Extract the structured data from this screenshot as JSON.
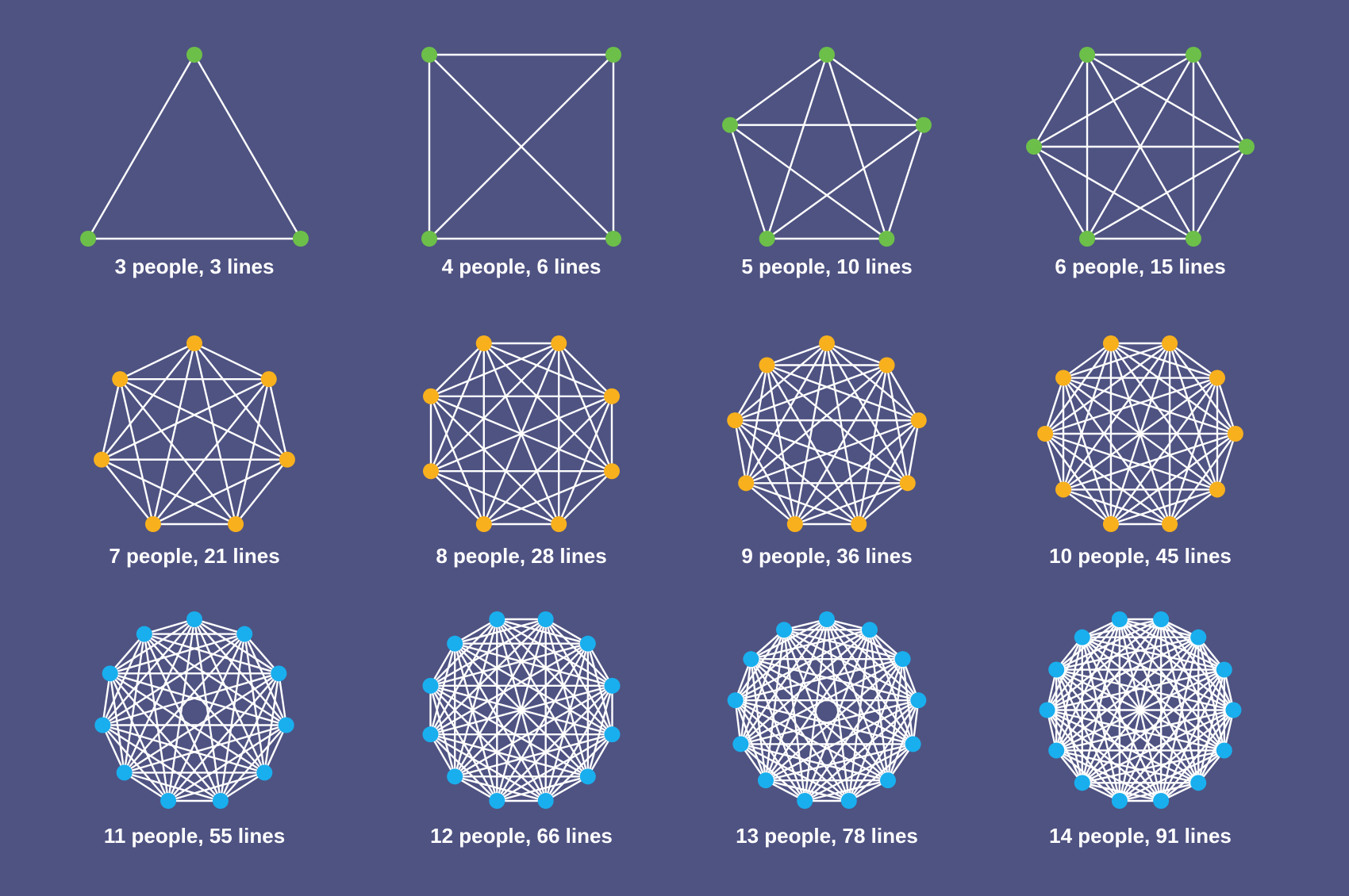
{
  "colors": {
    "background": "#4f5381",
    "line": "#ffffff",
    "green": "#6cc04a",
    "orange": "#f8b01d",
    "blue": "#19aeee"
  },
  "graphs": [
    {
      "people": 3,
      "lines": 3,
      "label": "3 people, 3 lines",
      "color": "green"
    },
    {
      "people": 4,
      "lines": 6,
      "label": "4 people, 6 lines",
      "color": "green"
    },
    {
      "people": 5,
      "lines": 10,
      "label": "5 people, 10 lines",
      "color": "green"
    },
    {
      "people": 6,
      "lines": 15,
      "label": "6 people, 15 lines",
      "color": "green"
    },
    {
      "people": 7,
      "lines": 21,
      "label": "7 people, 21 lines",
      "color": "orange"
    },
    {
      "people": 8,
      "lines": 28,
      "label": "8 people, 28 lines",
      "color": "orange"
    },
    {
      "people": 9,
      "lines": 36,
      "label": "9 people, 36 lines",
      "color": "orange"
    },
    {
      "people": 10,
      "lines": 45,
      "label": "10 people, 45 lines",
      "color": "orange"
    },
    {
      "people": 11,
      "lines": 55,
      "label": "11 people, 55 lines",
      "color": "blue"
    },
    {
      "people": 12,
      "lines": 66,
      "label": "12 people, 66 lines",
      "color": "blue"
    },
    {
      "people": 13,
      "lines": 78,
      "label": "13 people, 78 lines",
      "color": "blue"
    },
    {
      "people": 14,
      "lines": 91,
      "label": "14 people, 91 lines",
      "color": "blue"
    }
  ]
}
